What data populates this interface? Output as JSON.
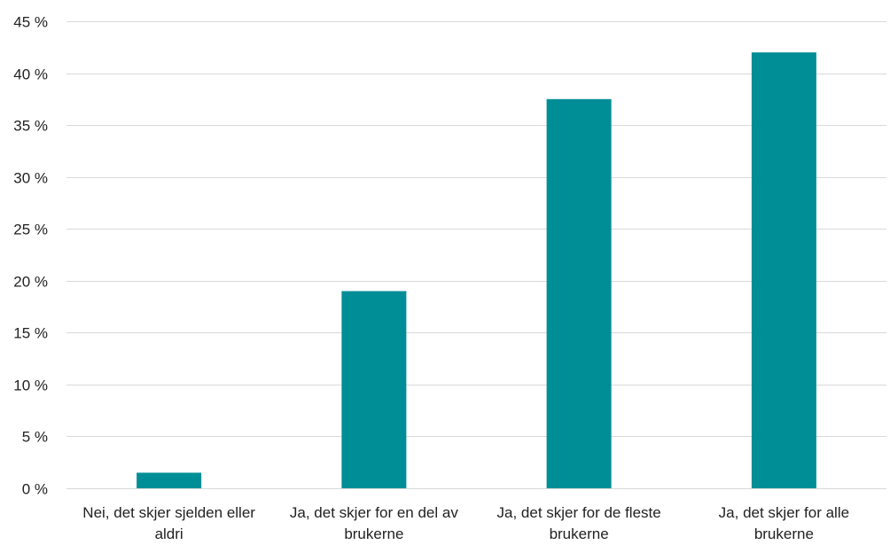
{
  "chart_data": {
    "type": "bar",
    "categories": [
      [
        "Nei, det skjer sjelden eller",
        "aldri"
      ],
      [
        "Ja, det skjer for en del av",
        "brukerne"
      ],
      [
        "Ja, det skjer for de fleste",
        "brukerne"
      ],
      [
        "Ja, det skjer for alle",
        "brukerne"
      ]
    ],
    "values": [
      1.5,
      19.0,
      37.5,
      42.0
    ],
    "ylim": [
      0,
      45
    ],
    "yticks": [
      0,
      5,
      10,
      15,
      20,
      25,
      30,
      35,
      40,
      45
    ],
    "ytick_labels": [
      "0 %",
      "5 %",
      "10 %",
      "15 %",
      "20 %",
      "25 %",
      "30 %",
      "35 %",
      "40 %",
      "45 %"
    ],
    "grid": true,
    "bar_color": "#008E96",
    "grid_color": "#D9D9D9"
  }
}
